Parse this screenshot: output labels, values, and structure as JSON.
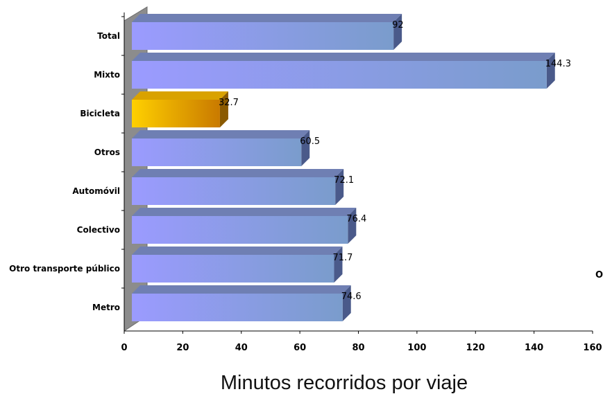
{
  "chart_data": {
    "type": "bar",
    "orientation": "horizontal",
    "style": "3d",
    "categories": [
      "Metro",
      "Otro transporte público",
      "Colectivo",
      "Automóvil",
      "Otros",
      "Bicicleta",
      "Mixto",
      "Total"
    ],
    "values": [
      74.6,
      71.7,
      76.4,
      72.1,
      60.5,
      32.7,
      144.3,
      92
    ],
    "data_labels": [
      "74.6",
      "71.7",
      "76.4",
      "72.1",
      "60.5",
      "32.7",
      "144.3",
      "92"
    ],
    "highlight_category": "Bicicleta",
    "xlim": [
      0,
      160
    ],
    "x_ticks": [
      0,
      20,
      40,
      60,
      80,
      100,
      120,
      140,
      160
    ],
    "x_tick_labels": [
      "0",
      "20",
      "40",
      "60",
      "80",
      "100",
      "120",
      "140",
      "160"
    ],
    "xlabel": "Minutos recorridos por viaje",
    "grid": false,
    "colors": {
      "bar_start": "#9b9bff",
      "bar_end": "#7a9ccc",
      "bar_top": "#6f7fb3",
      "bar_side": "#4a5a8a",
      "highlight_start": "#ffd000",
      "highlight_end": "#c97a00",
      "highlight_top": "#d9a200",
      "highlight_side": "#8a5a00",
      "wall": "#8c8c8c"
    }
  },
  "stray_text": "O"
}
